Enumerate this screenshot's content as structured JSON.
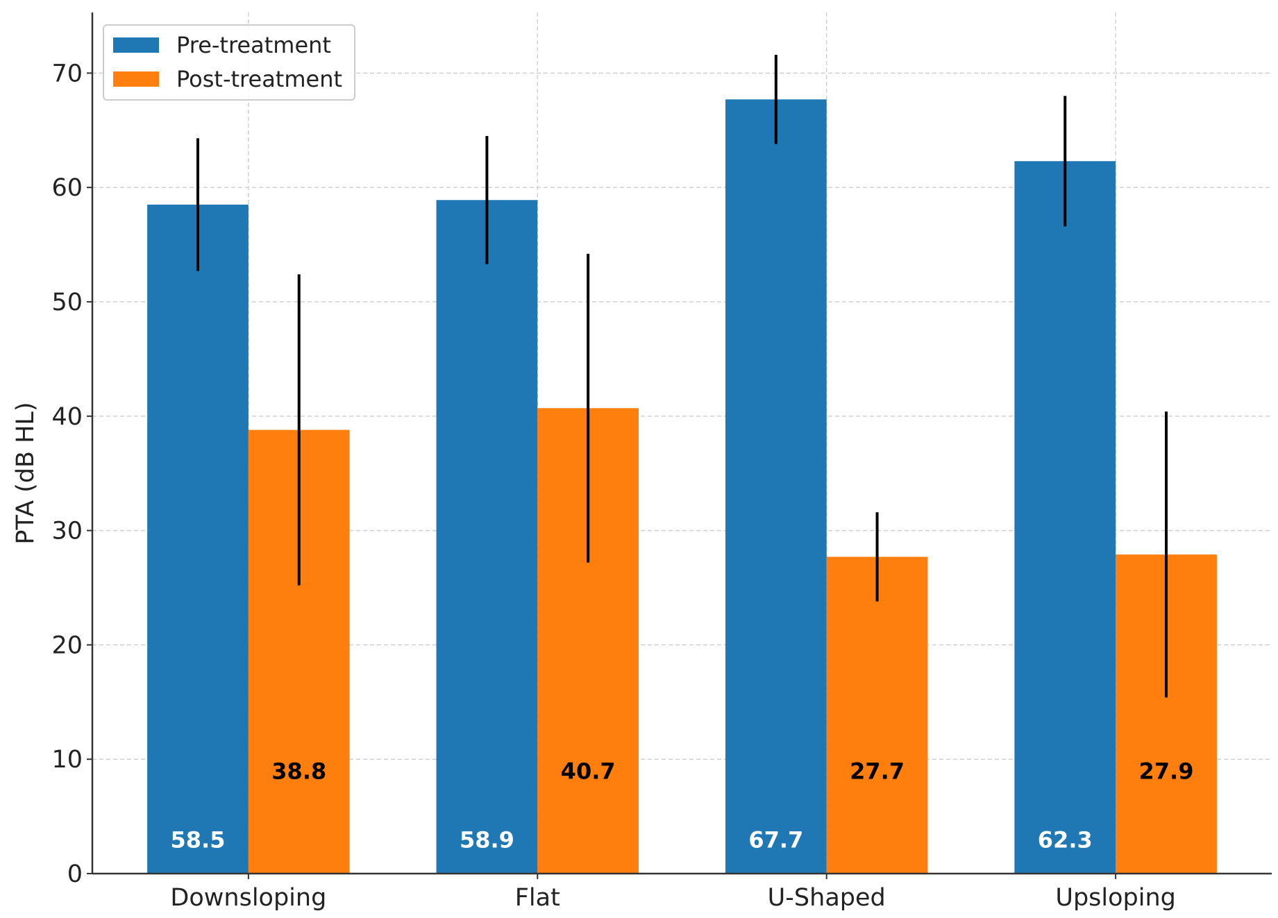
{
  "chart_data": {
    "type": "bar",
    "title": "",
    "xlabel": "",
    "ylabel": "PTA (dB HL)",
    "categories": [
      "Downsloping",
      "Flat",
      "U-Shaped",
      "Upsloping"
    ],
    "series": [
      {
        "name": "Pre-treatment",
        "color": "#1f77b4",
        "values": [
          58.5,
          58.9,
          67.7,
          62.3
        ],
        "errors": [
          5.8,
          5.6,
          3.9,
          5.7
        ],
        "labels": [
          "58.5",
          "58.9",
          "67.7",
          "62.3"
        ],
        "label_color": "#ffffff"
      },
      {
        "name": "Post-treatment",
        "color": "#ff7f0e",
        "values": [
          38.8,
          40.7,
          27.7,
          27.9
        ],
        "errors": [
          13.6,
          13.5,
          3.9,
          12.5
        ],
        "labels": [
          "38.8",
          "40.7",
          "27.7",
          "27.9"
        ],
        "label_color": "#000000"
      }
    ],
    "ylim": [
      0,
      75.3
    ],
    "yticks": [
      "0",
      "10",
      "20",
      "30",
      "40",
      "50",
      "60",
      "70"
    ],
    "grid": true,
    "legend": "top-left"
  }
}
